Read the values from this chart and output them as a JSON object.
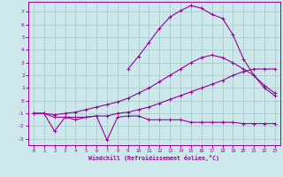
{
  "xlabel": "Windchill (Refroidissement éolien,°C)",
  "bg_color": "#cce8ea",
  "grid_color": "#aacccc",
  "line_color": "#990099",
  "xlim": [
    -0.5,
    23.5
  ],
  "ylim": [
    -3.5,
    7.8
  ],
  "xticks": [
    0,
    1,
    2,
    3,
    4,
    5,
    6,
    7,
    8,
    9,
    10,
    11,
    12,
    13,
    14,
    15,
    16,
    17,
    18,
    19,
    20,
    21,
    22,
    23
  ],
  "yticks": [
    -3,
    -2,
    -1,
    0,
    1,
    2,
    3,
    4,
    5,
    6,
    7
  ],
  "s1_x": [
    0,
    1,
    2,
    3,
    4,
    5,
    6,
    7,
    8,
    9,
    10,
    11,
    12,
    13,
    14,
    15,
    16,
    17,
    18,
    19,
    20,
    21,
    22,
    23
  ],
  "s1_y": [
    -1.0,
    -1.0,
    -2.4,
    -1.3,
    -1.5,
    -1.3,
    -1.2,
    -3.1,
    -1.3,
    -1.2,
    -1.2,
    -1.5,
    -1.5,
    -1.5,
    -1.5,
    -1.7,
    -1.7,
    -1.7,
    -1.7,
    -1.7,
    -1.8,
    -1.8,
    -1.8,
    -1.8
  ],
  "s2_x": [
    0,
    1,
    2,
    3,
    4,
    5,
    6,
    7,
    8,
    9,
    10,
    11,
    12,
    13,
    14,
    15,
    16,
    17,
    18,
    19,
    20,
    21,
    22,
    23
  ],
  "s2_y": [
    -1.0,
    -1.0,
    -1.3,
    -1.3,
    -1.3,
    -1.3,
    -1.2,
    -1.2,
    -1.0,
    -0.9,
    -0.7,
    -0.5,
    -0.2,
    0.1,
    0.4,
    0.7,
    1.0,
    1.3,
    1.6,
    2.0,
    2.3,
    2.5,
    2.5,
    2.5
  ],
  "s3_x": [
    0,
    1,
    2,
    3,
    4,
    5,
    6,
    7,
    8,
    9,
    10,
    11,
    12,
    13,
    14,
    15,
    16,
    17,
    18,
    19,
    20,
    21,
    22,
    23
  ],
  "s3_y": [
    -1.0,
    -1.0,
    -1.1,
    -1.0,
    -0.9,
    -0.7,
    -0.5,
    -0.3,
    -0.1,
    0.2,
    0.6,
    1.0,
    1.5,
    2.0,
    2.5,
    3.0,
    3.4,
    3.6,
    3.4,
    3.0,
    2.5,
    2.0,
    1.2,
    0.6
  ],
  "s4_x": [
    9,
    10,
    11,
    12,
    13,
    14,
    15,
    16,
    17,
    18,
    19,
    20,
    21,
    22,
    23
  ],
  "s4_y": [
    2.5,
    3.5,
    4.6,
    5.7,
    6.6,
    7.1,
    7.5,
    7.3,
    6.8,
    6.5,
    5.2,
    3.3,
    2.0,
    1.0,
    0.4
  ]
}
